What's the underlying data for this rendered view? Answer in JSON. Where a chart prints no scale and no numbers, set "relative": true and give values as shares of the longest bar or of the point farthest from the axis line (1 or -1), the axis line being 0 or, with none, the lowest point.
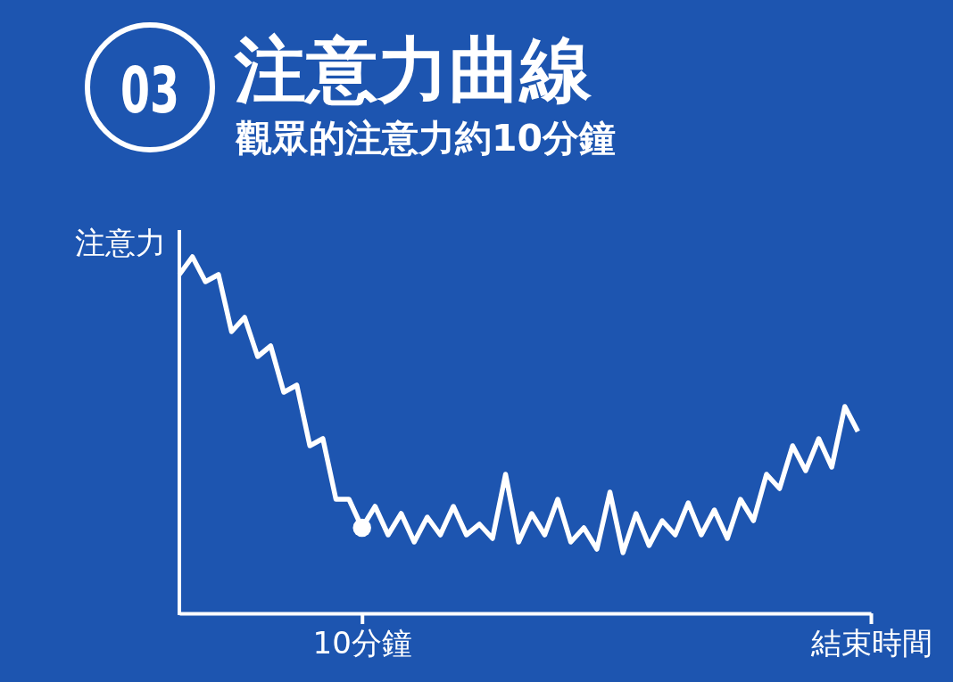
{
  "chart_data": {
    "type": "line",
    "title": "注意力曲線",
    "subtitle": "觀眾的注意力約10分鐘",
    "ylabel": "注意力",
    "annotations": [
      "03"
    ],
    "relative": true,
    "categories": [
      null,
      null,
      null,
      null,
      null,
      null,
      null,
      null,
      null,
      null,
      null,
      null,
      null,
      null,
      "10分鐘",
      null,
      null,
      null,
      null,
      null,
      null,
      null,
      null,
      null,
      null,
      null,
      null,
      null,
      null,
      null,
      null,
      null,
      null,
      null,
      null,
      null,
      null,
      null,
      null,
      null,
      null,
      null,
      null,
      null,
      null,
      null,
      null,
      null,
      null,
      null,
      null,
      null,
      null,
      "結束時間"
    ],
    "series": [
      {
        "color": "#ffffff",
        "values": [
          0.95,
          1,
          0.93,
          0.95,
          0.79,
          0.83,
          0.72,
          0.75,
          0.62,
          0.64,
          0.47,
          0.49,
          0.32,
          0.32,
          0.24,
          0.3,
          0.22,
          0.28,
          0.2,
          0.27,
          0.22,
          0.3,
          0.22,
          0.25,
          0.21,
          0.39,
          0.2,
          0.28,
          0.22,
          0.32,
          0.2,
          0.24,
          0.18,
          0.34,
          0.17,
          0.28,
          0.19,
          0.26,
          0.22,
          0.31,
          0.22,
          0.29,
          0.21,
          0.32,
          0.26,
          0.39,
          0.35,
          0.47,
          0.4,
          0.49,
          0.41,
          0.58,
          0.51,
          null
        ]
      },
      {
        "type": "scatter",
        "color": "#ffffff",
        "marker": "circle",
        "values": [
          null,
          null,
          null,
          null,
          null,
          null,
          null,
          null,
          null,
          null,
          null,
          null,
          null,
          null,
          0.24,
          null,
          null,
          null,
          null,
          null,
          null,
          null,
          null,
          null,
          null,
          null,
          null,
          null,
          null,
          null,
          null,
          null,
          null,
          null,
          null,
          null,
          null,
          null,
          null,
          null,
          null,
          null,
          null,
          null,
          null,
          null,
          null,
          null,
          null,
          null,
          null,
          null,
          null,
          null
        ]
      }
    ]
  }
}
